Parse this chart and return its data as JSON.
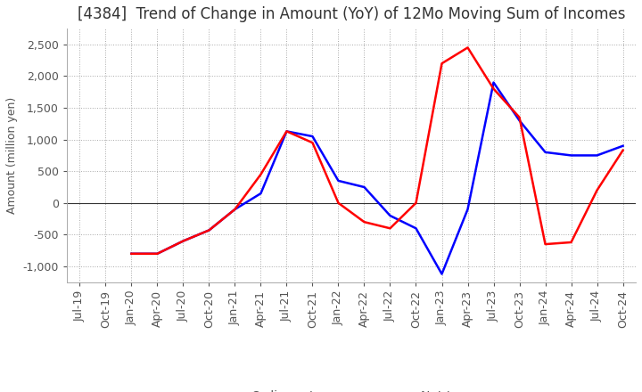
{
  "title": "[4384]  Trend of Change in Amount (YoY) of 12Mo Moving Sum of Incomes",
  "ylabel": "Amount (million yen)",
  "ylim": [
    -1250,
    2750
  ],
  "yticks": [
    -1000,
    -500,
    0,
    500,
    1000,
    1500,
    2000,
    2500
  ],
  "x_labels": [
    "Jul-19",
    "Oct-19",
    "Jan-20",
    "Apr-20",
    "Jul-20",
    "Oct-20",
    "Jan-21",
    "Apr-21",
    "Jul-21",
    "Oct-21",
    "Jan-22",
    "Apr-22",
    "Jul-22",
    "Oct-22",
    "Jan-23",
    "Apr-23",
    "Jul-23",
    "Oct-23",
    "Jan-24",
    "Apr-24",
    "Jul-24",
    "Oct-24"
  ],
  "ordinary_income": [
    null,
    null,
    -800,
    -800,
    -600,
    -430,
    -100,
    150,
    1130,
    1050,
    350,
    250,
    -200,
    -400,
    -1120,
    -100,
    1900,
    1300,
    800,
    750,
    750,
    900
  ],
  "net_income": [
    null,
    null,
    -800,
    -800,
    -600,
    -430,
    -100,
    450,
    1130,
    950,
    0,
    -300,
    -400,
    0,
    2200,
    2450,
    1800,
    1350,
    -650,
    -620,
    200,
    830
  ],
  "ordinary_color": "#0000ff",
  "net_color": "#ff0000",
  "grid_color": "#aaaaaa",
  "zero_line_color": "#333333",
  "background_color": "#ffffff",
  "title_fontsize": 12,
  "legend_fontsize": 10,
  "tick_fontsize": 9,
  "tick_color": "#555555"
}
